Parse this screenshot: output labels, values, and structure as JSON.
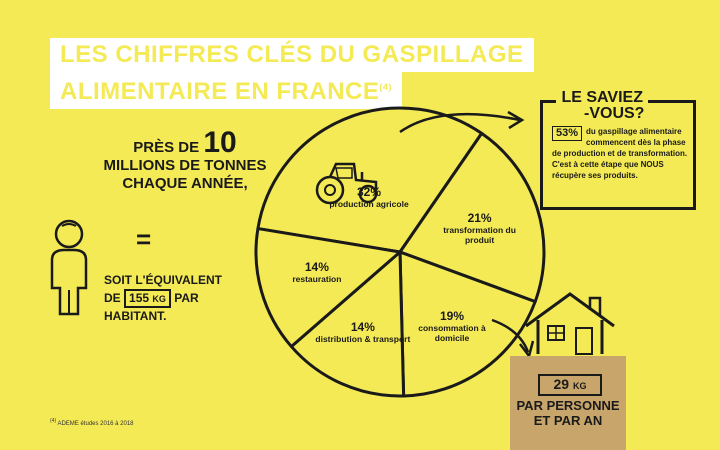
{
  "title": {
    "line1": "LES CHIFFRES CLÉS DU GASPILLAGE",
    "line2": "ALIMENTAIRE EN FRANCE",
    "note_marker": "(4)"
  },
  "headline": {
    "prefix": "PRÈS DE",
    "number": "10",
    "rest": "MILLIONS DE TONNES CHAQUE ANNÉE,"
  },
  "equals_sign": "=",
  "equivalent": {
    "line1": "SOIT L'ÉQUIVALENT",
    "de": "DE",
    "value": "155",
    "unit": "KG",
    "par": "PAR",
    "line3": "HABITANT."
  },
  "saviez_vous": {
    "title_line1": "LE SAVIEZ",
    "title_line2": "-VOUS?",
    "percent": "53%",
    "text": "du gaspillage alimentaire commencent dès la phase de production et de transformation. C'est à cette étape que NOUS récupère ses produits."
  },
  "sack": {
    "value": "29",
    "unit": "KG",
    "text": "PAR PERSONNE ET PAR AN"
  },
  "footnote": {
    "marker": "(4)",
    "text": "ADEME études 2016 à 2018"
  },
  "colors": {
    "background": "#F4EA55",
    "ink": "#1a1a1a",
    "title_bg": "#ffffff",
    "sack": "#C8A56A"
  },
  "icons": [
    "tractor-icon",
    "person-icon",
    "house-icon",
    "arrow-icon",
    "sack-icon"
  ],
  "chart_data": {
    "type": "pie",
    "title": "",
    "slices": [
      {
        "label": "production agricole",
        "value": 32,
        "display": "32%"
      },
      {
        "label": "transformation du produit",
        "value": 21,
        "display": "21%"
      },
      {
        "label": "consommation à domicile",
        "value": 19,
        "display": "19%"
      },
      {
        "label": "distribution & transport",
        "value": 14,
        "display": "14%"
      },
      {
        "label": "restauration",
        "value": 14,
        "display": "14%"
      }
    ]
  }
}
